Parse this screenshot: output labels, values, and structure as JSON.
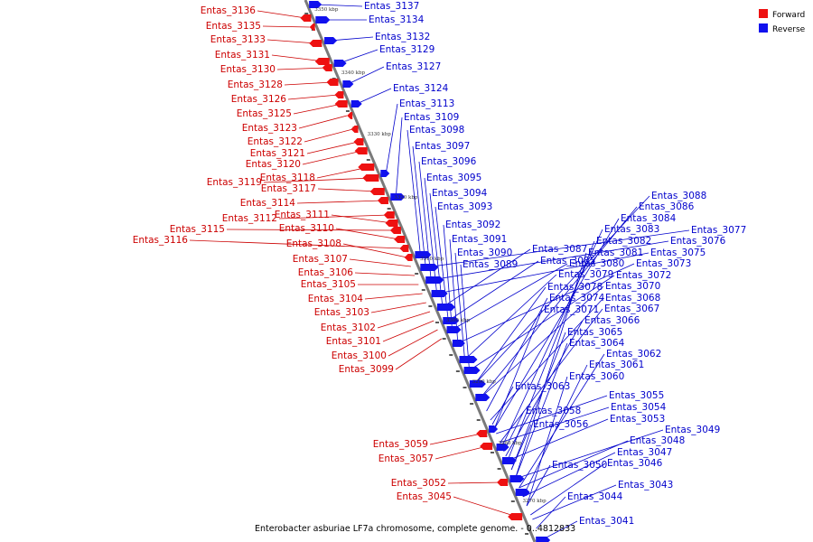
{
  "caption": "Enterobacter asburiae LF7a chromosome, complete genome. - 0..4812833",
  "legend": [
    {
      "label": "Forward",
      "color": "#ee1111"
    },
    {
      "label": "Reverse",
      "color": "#1111ee"
    }
  ],
  "colors": {
    "forward": "#ee1111",
    "reverse": "#1111ee",
    "axis": "#888888",
    "label_forward": "#cc0000",
    "label_reverse": "#0000cc"
  },
  "kbp_ticks": [
    "3350 kbp",
    "3340 kbp",
    "3330 kbp",
    "3320 kbp",
    "3310 kbp",
    "3300 kbp",
    "3290 kbp",
    "3280 kbp",
    "3270 kbp"
  ],
  "forward_labels": [
    "Entas_3136",
    "Entas_3135",
    "Entas_3133",
    "Entas_3131",
    "Entas_3130",
    "Entas_3128",
    "Entas_3126",
    "Entas_3125",
    "Entas_3123",
    "Entas_3122",
    "Entas_3121",
    "Entas_3120",
    "Entas_3118",
    "Entas_3119",
    "Entas_3117",
    "Entas_3114",
    "Entas_3112",
    "Entas_3111",
    "Entas_3115",
    "Entas_3110",
    "Entas_3116",
    "Entas_3108",
    "Entas_3107",
    "Entas_3106",
    "Entas_3105",
    "Entas_3104",
    "Entas_3103",
    "Entas_3102",
    "Entas_3101",
    "Entas_3100",
    "Entas_3099",
    "Entas_3059",
    "Entas_3057",
    "Entas_3052",
    "Entas_3045"
  ],
  "reverse_labels": [
    "Entas_3137",
    "Entas_3134",
    "Entas_3132",
    "Entas_3129",
    "Entas_3127",
    "Entas_3124",
    "Entas_3113",
    "Entas_3109",
    "Entas_3098",
    "Entas_3097",
    "Entas_3096",
    "Entas_3095",
    "Entas_3094",
    "Entas_3093",
    "Entas_3092",
    "Entas_3091",
    "Entas_3090",
    "Entas_3089",
    "Entas_3088",
    "Entas_3086",
    "Entas_3084",
    "Entas_3083",
    "Entas_3082",
    "Entas_3081",
    "Entas_3077",
    "Entas_3076",
    "Entas_3075",
    "Entas_3087",
    "Entas_3085",
    "Entas_3080",
    "Entas_3073",
    "Entas_3079",
    "Entas_3072",
    "Entas_3078",
    "Entas_3070",
    "Entas_3074",
    "Entas_3068",
    "Entas_3071",
    "Entas_3067",
    "Entas_3066",
    "Entas_3065",
    "Entas_3064",
    "Entas_3062",
    "Entas_3061",
    "Entas_3060",
    "Entas_3063",
    "Entas_3055",
    "Entas_3054",
    "Entas_3058",
    "Entas_3053",
    "Entas_3056",
    "Entas_3049",
    "Entas_3048",
    "Entas_3047",
    "Entas_3050",
    "Entas_3046",
    "Entas_3043",
    "Entas_3044",
    "Entas_3041"
  ]
}
